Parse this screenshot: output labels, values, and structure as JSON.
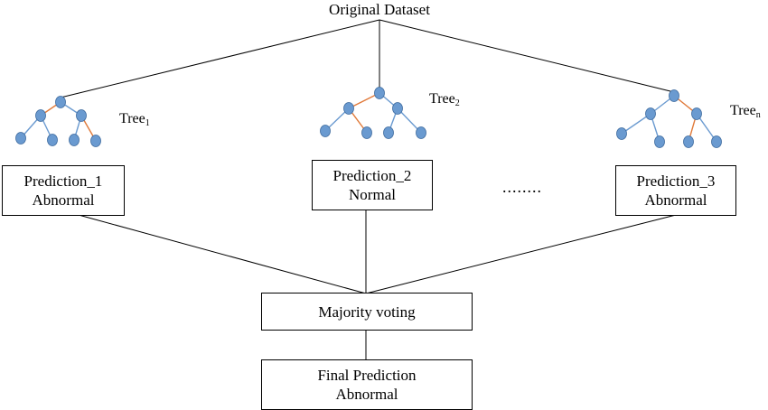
{
  "title": "Original Dataset",
  "trees": [
    {
      "name": "Tree",
      "subscript": "1"
    },
    {
      "name": "Tree",
      "subscript": "2"
    },
    {
      "name": "Tree",
      "subscript": "n"
    }
  ],
  "predictions": [
    {
      "label": "Prediction_1",
      "value": "Abnormal"
    },
    {
      "label": "Prediction_2",
      "value": "Normal"
    },
    {
      "label": "Prediction_3",
      "value": "Abnormal"
    }
  ],
  "ellipsis": "........",
  "voting": {
    "label": "Majority voting"
  },
  "final": {
    "label": "Final Prediction",
    "value": "Abnormal"
  },
  "colors": {
    "node_fill": "#6a9ad0",
    "node_stroke": "#3d6a9e",
    "edge_blue": "#6a9ad0",
    "edge_orange": "#e07a3a",
    "line": "#000000"
  }
}
